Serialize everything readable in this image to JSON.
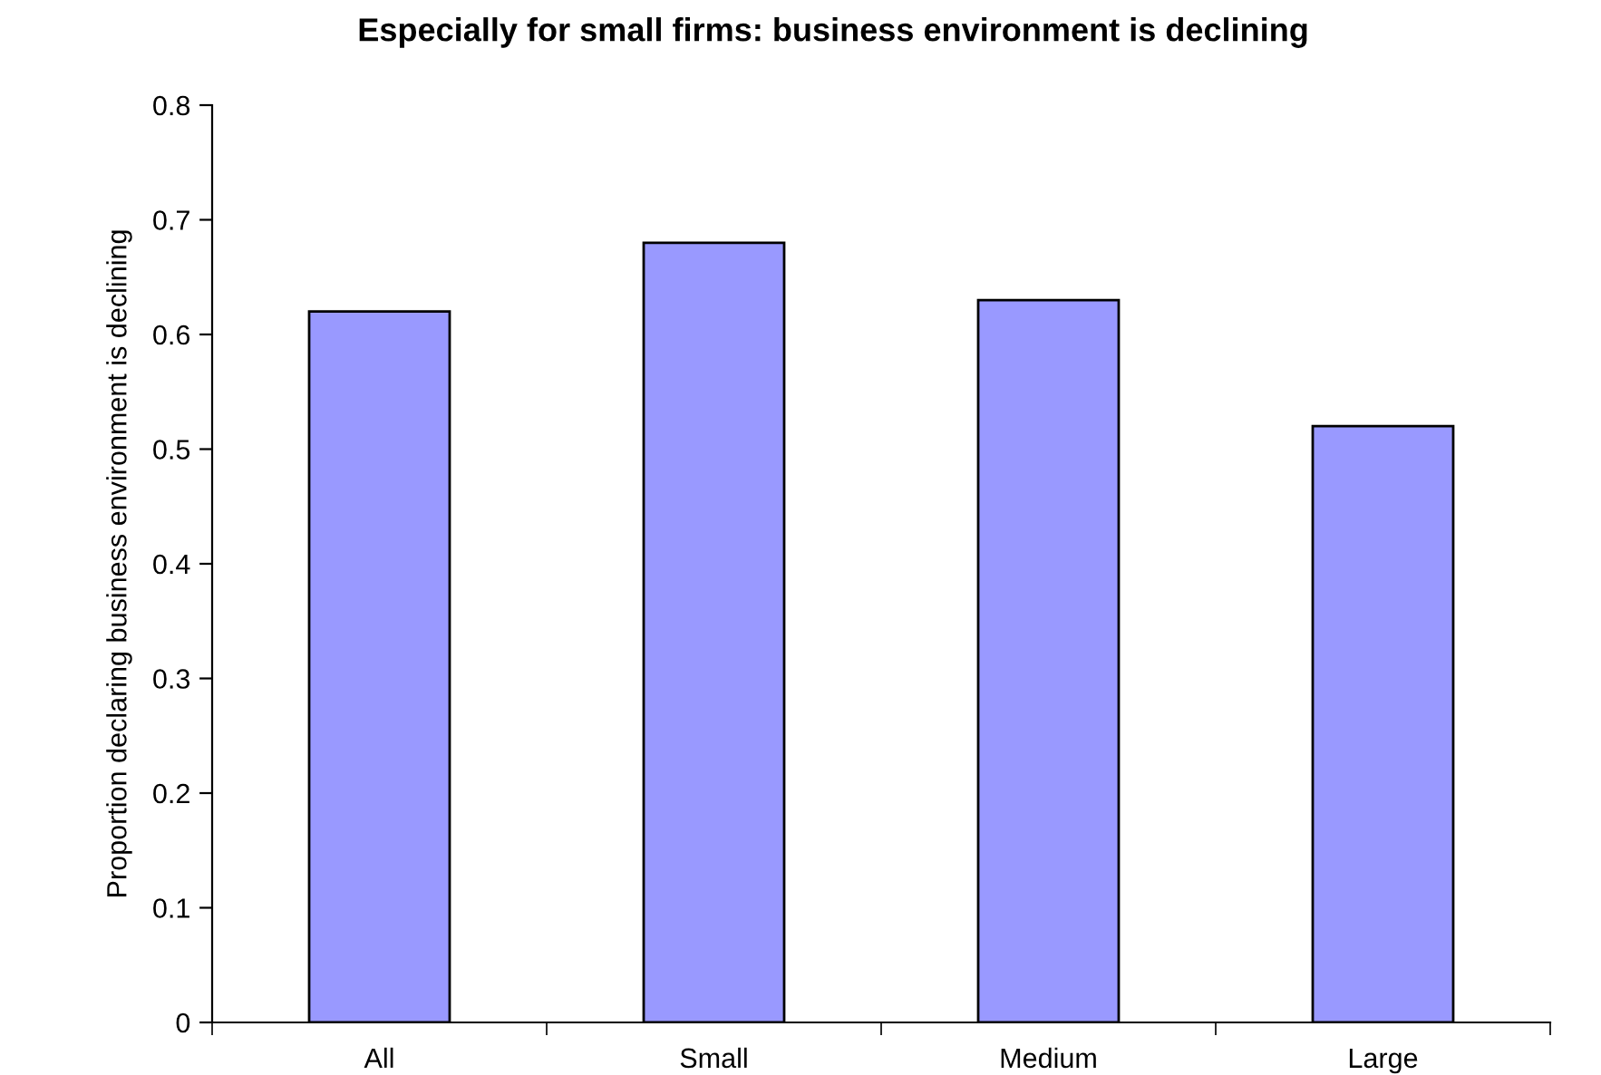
{
  "chart_data": {
    "type": "bar",
    "title": "Especially for small firms: business environment is declining",
    "ylabel": "Proportion declaring business environment is declining",
    "categories": [
      "All",
      "Small",
      "Medium",
      "Large"
    ],
    "values": [
      0.62,
      0.68,
      0.63,
      0.52
    ],
    "color": "#9999ff",
    "ylim": [
      0,
      0.8
    ],
    "yticks": [
      0,
      0.1,
      0.2,
      0.3,
      0.4,
      0.5,
      0.6,
      0.7,
      0.8
    ],
    "grid": false,
    "legend": false
  }
}
